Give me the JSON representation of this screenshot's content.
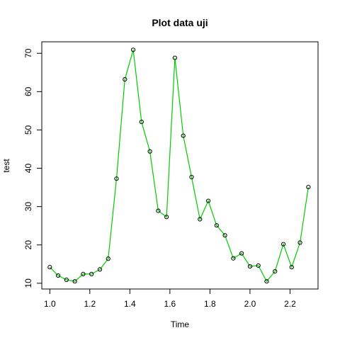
{
  "chart_data": {
    "type": "line",
    "title": "Plot data uji",
    "xlabel": "Time",
    "ylabel": "test",
    "xlim": [
      0.96,
      2.34
    ],
    "ylim": [
      8.5,
      73
    ],
    "x_ticks": [
      1.0,
      1.2,
      1.4,
      1.6,
      1.8,
      2.0,
      2.2
    ],
    "x_tick_labels": [
      "1.0",
      "1.2",
      "1.4",
      "1.6",
      "1.8",
      "2.0",
      "2.2"
    ],
    "y_ticks": [
      10,
      20,
      30,
      40,
      50,
      60,
      70
    ],
    "y_tick_labels": [
      "10",
      "20",
      "30",
      "40",
      "50",
      "60",
      "70"
    ],
    "grid": false,
    "line_color": "#00cc00",
    "marker": "open-circle",
    "series": [
      {
        "x": [
          1.0,
          1.0417,
          1.0833,
          1.125,
          1.1667,
          1.2083,
          1.25,
          1.2917,
          1.3333,
          1.375,
          1.4167,
          1.4583,
          1.5,
          1.5417,
          1.5833,
          1.625,
          1.6667,
          1.7083,
          1.75,
          1.7917,
          1.8333,
          1.875,
          1.9167,
          1.9583,
          2.0,
          2.0417,
          2.0833,
          2.125,
          2.1667,
          2.2083,
          2.25,
          2.2917
        ],
        "values": [
          14.2,
          12.0,
          10.9,
          10.5,
          12.4,
          12.4,
          13.6,
          16.4,
          37.3,
          63.2,
          70.9,
          52.1,
          44.4,
          28.9,
          27.3,
          68.8,
          48.5,
          37.7,
          26.7,
          31.5,
          25.1,
          22.5,
          16.5,
          17.8,
          14.4,
          14.6,
          10.5,
          13.1,
          20.2,
          14.2,
          20.6,
          35.1
        ]
      }
    ]
  }
}
